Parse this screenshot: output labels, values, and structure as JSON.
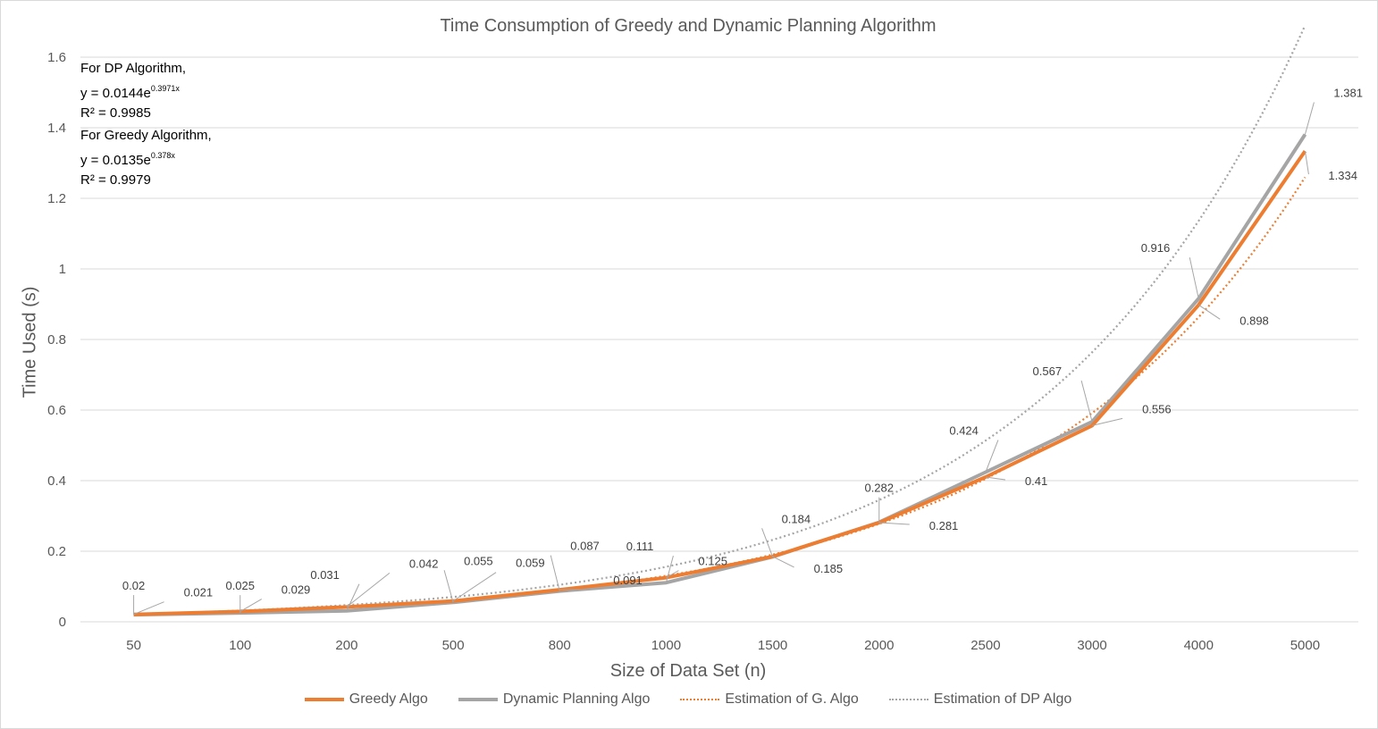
{
  "title": "Time Consumption of Greedy and Dynamic Planning Algorithm",
  "annotations": {
    "dp_heading": "For DP Algorithm,",
    "dp_eq_prefix": "y = 0.0144e",
    "dp_eq_exp": "0.3971x",
    "dp_r2": "R² = 0.9985",
    "greedy_heading": "For Greedy Algorithm,",
    "greedy_eq_prefix": "y = 0.0135e",
    "greedy_eq_exp": "0.378x",
    "greedy_r2": "R² = 0.9979"
  },
  "colors": {
    "greedy": "#ed7d31",
    "dp": "#a5a5a5",
    "grid": "#d9d9d9",
    "text": "#595959"
  },
  "chart_data": {
    "type": "line",
    "title": "Time Consumption of Greedy and Dynamic Planning Algorithm",
    "xlabel": "Size of Data Set (n)",
    "ylabel": "Time Used (s)",
    "categories": [
      "50",
      "100",
      "200",
      "500",
      "800",
      "1000",
      "1500",
      "2000",
      "2500",
      "3000",
      "4000",
      "5000"
    ],
    "yticks": [
      "0",
      "0.2",
      "0.4",
      "0.6",
      "0.8",
      "1",
      "1.2",
      "1.4",
      "1.6"
    ],
    "ylim": [
      0,
      1.6
    ],
    "grid": true,
    "legend_position": "bottom",
    "series": [
      {
        "name": "Greedy Algo",
        "style": "solid",
        "values": [
          0.021,
          0.029,
          0.042,
          0.059,
          0.091,
          0.125,
          0.185,
          0.281,
          0.41,
          0.556,
          0.898,
          1.334
        ],
        "labels": [
          "0.021",
          "0.029",
          "0.042",
          "0.059",
          "0.091",
          "0.125",
          "0.185",
          "0.281",
          "0.41",
          "0.556",
          "0.898",
          "1.334"
        ]
      },
      {
        "name": "Dynamic Planning Algo",
        "style": "solid",
        "values": [
          0.02,
          0.025,
          0.031,
          0.055,
          0.087,
          0.111,
          0.184,
          0.282,
          0.424,
          0.567,
          0.916,
          1.381
        ],
        "labels": [
          "0.02",
          "0.025",
          "0.031",
          "0.055",
          "0.087",
          "0.111",
          "0.184",
          "0.282",
          "0.424",
          "0.567",
          "0.916",
          "1.381"
        ]
      },
      {
        "name": "Estimation of G. Algo",
        "style": "dotted",
        "equation": "y = 0.0135e^(0.378x)"
      },
      {
        "name": "Estimation of DP Algo",
        "style": "dotted",
        "equation": "y = 0.0144e^(0.3971x)"
      }
    ]
  }
}
